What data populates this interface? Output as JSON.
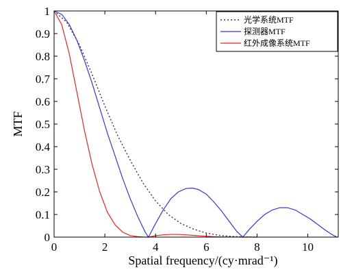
{
  "chart_data": {
    "type": "line",
    "title": "",
    "xlabel": "Spatial frequency/(cy·mrad⁻¹)",
    "ylabel": "MTF",
    "xlim": [
      0,
      11.2
    ],
    "ylim": [
      0,
      1
    ],
    "x_ticks": [
      0,
      2,
      4,
      6,
      8,
      10
    ],
    "y_ticks": [
      0,
      0.1,
      0.2,
      0.3,
      0.4,
      0.5,
      0.6,
      0.7,
      0.8,
      0.9,
      1
    ],
    "x_tick_labels": [
      "0",
      "2",
      "4",
      "6",
      "8",
      "10"
    ],
    "y_tick_labels": [
      "0",
      "0.1",
      "0.2",
      "0.3",
      "0.4",
      "0.5",
      "0.6",
      "0.7",
      "0.8",
      "0.9",
      "1"
    ],
    "grid": false,
    "legend_position": "top-right",
    "series": [
      {
        "name": "光学系统MTF",
        "color": "#333333",
        "style": "dotted",
        "x": [
          0,
          0.5,
          1.0,
          1.5,
          2.0,
          2.5,
          3.0,
          3.5,
          4.0,
          4.5,
          5.0,
          5.5,
          6.0,
          6.5,
          7.0,
          7.5,
          8.0
        ],
        "y": [
          1,
          0.95,
          0.85,
          0.72,
          0.58,
          0.45,
          0.34,
          0.24,
          0.16,
          0.1,
          0.06,
          0.035,
          0.018,
          0.008,
          0.003,
          0.001,
          0
        ]
      },
      {
        "name": "探测器MTF",
        "color": "#3333ee",
        "style": "solid",
        "x": [
          0,
          0.3,
          0.6,
          0.9,
          1.2,
          1.5,
          1.8,
          2.1,
          2.4,
          2.7,
          3.0,
          3.3,
          3.6,
          3.72,
          4.0,
          4.3,
          4.6,
          4.9,
          5.2,
          5.45,
          5.7,
          6.0,
          6.3,
          6.6,
          6.9,
          7.2,
          7.44,
          7.7,
          8.0,
          8.3,
          8.6,
          8.9,
          9.2,
          9.5,
          9.8,
          10.1,
          10.4,
          10.7,
          11.0,
          11.16
        ],
        "y": [
          1,
          0.985,
          0.94,
          0.87,
          0.78,
          0.68,
          0.57,
          0.46,
          0.36,
          0.26,
          0.17,
          0.09,
          0.02,
          0,
          0.06,
          0.12,
          0.17,
          0.2,
          0.215,
          0.217,
          0.21,
          0.19,
          0.155,
          0.115,
          0.07,
          0.025,
          0,
          0.035,
          0.07,
          0.1,
          0.12,
          0.13,
          0.13,
          0.12,
          0.1,
          0.08,
          0.055,
          0.03,
          0.008,
          0
        ]
      },
      {
        "name": "红外成像系统MTF",
        "color": "#ee2222",
        "style": "solid",
        "x": [
          0,
          0.3,
          0.6,
          0.9,
          1.2,
          1.5,
          1.8,
          2.1,
          2.4,
          2.7,
          3.0,
          3.3,
          3.6,
          3.72,
          4.0,
          4.3,
          4.6,
          4.9,
          5.2,
          5.45,
          5.7,
          6.0,
          6.3,
          6.6,
          6.9,
          7.2,
          7.44,
          7.7,
          8.0
        ],
        "y": [
          1,
          0.94,
          0.81,
          0.64,
          0.47,
          0.32,
          0.2,
          0.11,
          0.055,
          0.022,
          0.007,
          0.002,
          0,
          0,
          0.006,
          0.01,
          0.012,
          0.012,
          0.01,
          0.008,
          0.006,
          0.004,
          0.002,
          0.001,
          0.0005,
          0.0002,
          0,
          0.0001,
          0
        ]
      }
    ]
  }
}
